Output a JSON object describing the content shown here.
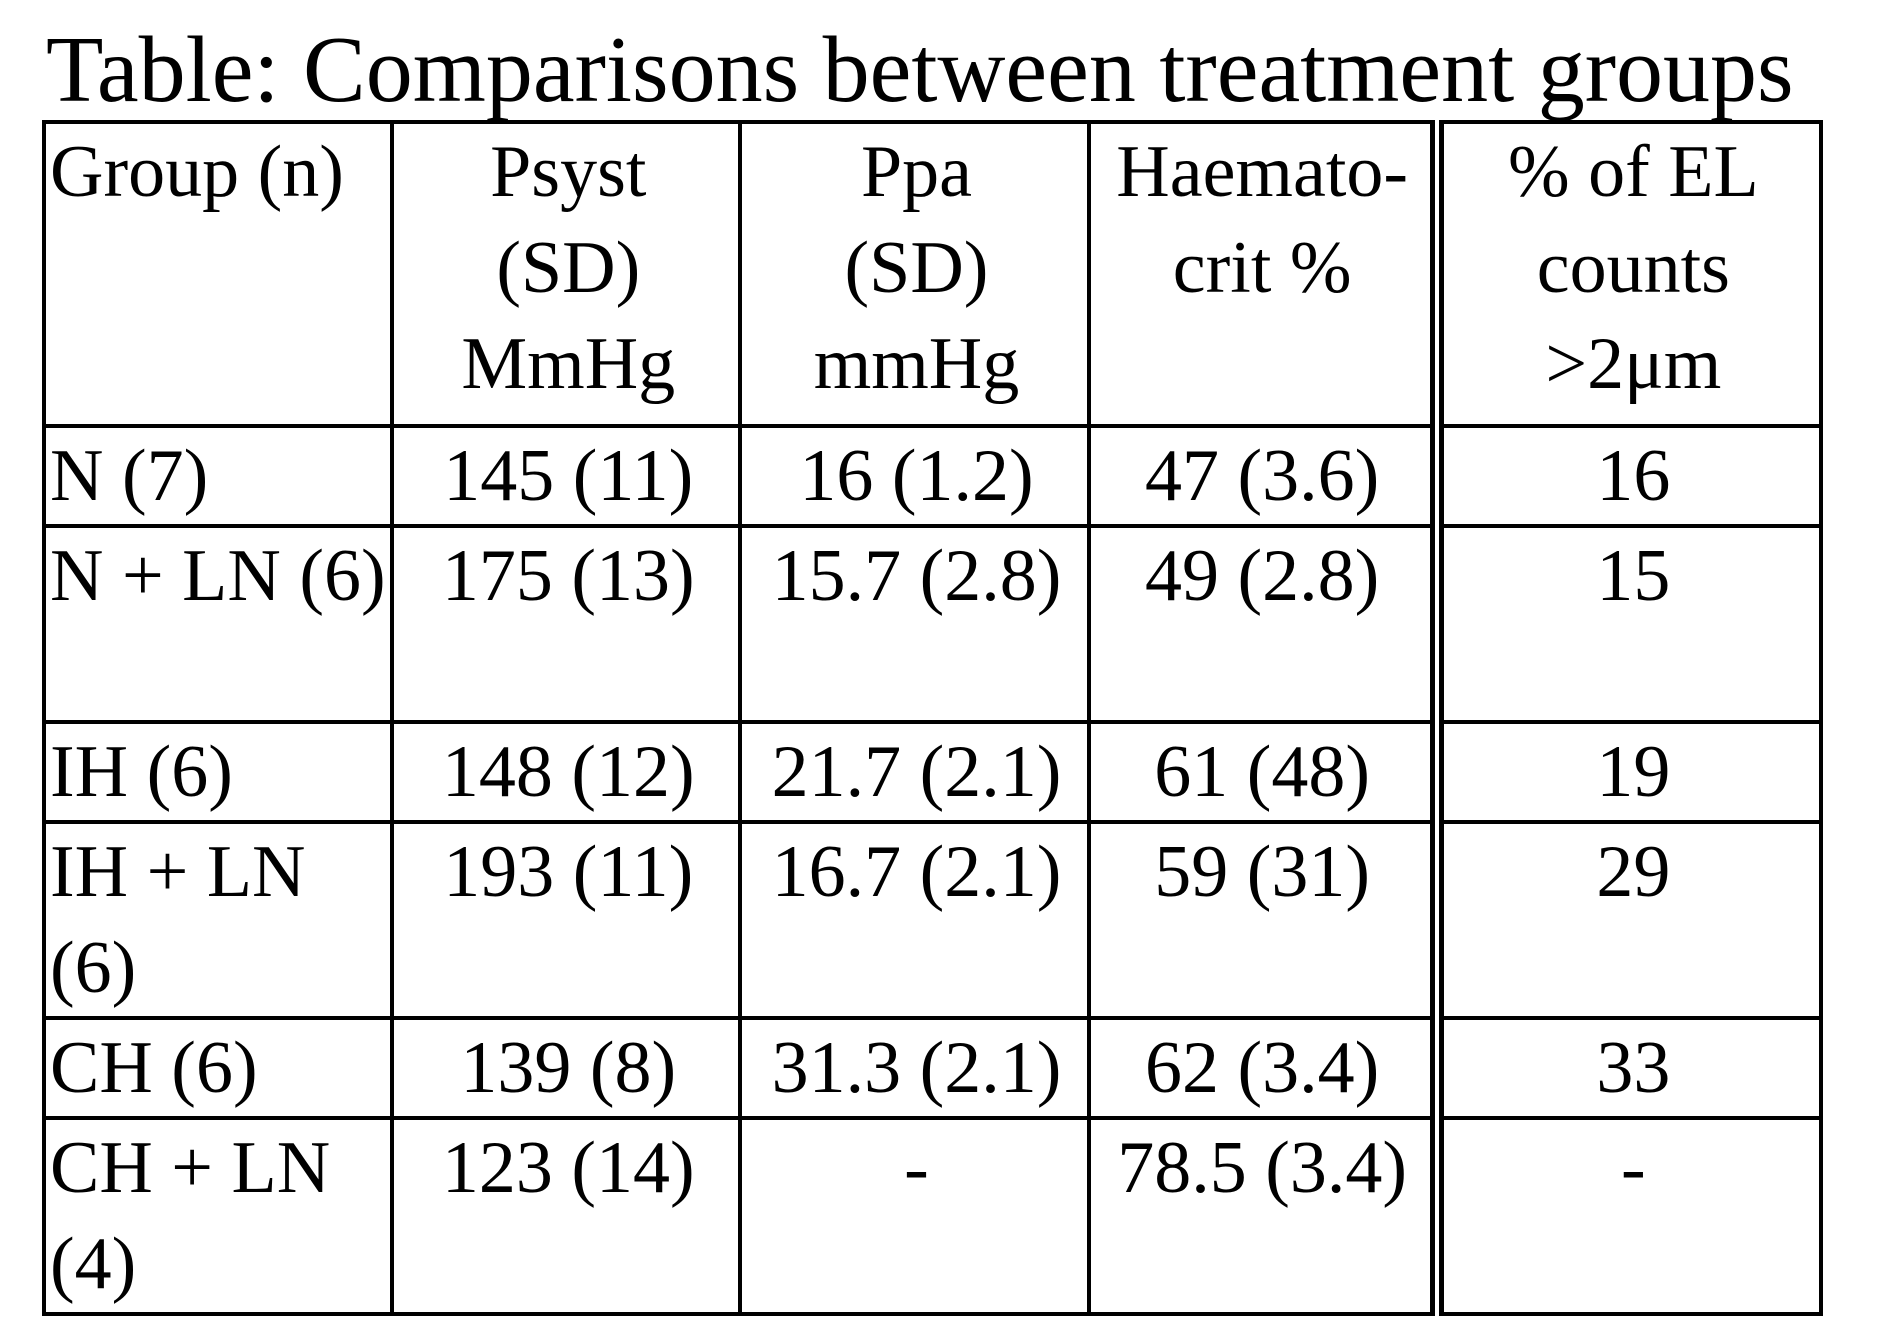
{
  "title": "Table: Comparisons between treatment groups",
  "table": {
    "headers": [
      [
        "Group (n)"
      ],
      [
        "Psyst",
        "(SD)",
        "MmHg"
      ],
      [
        "Ppa",
        "(SD)",
        "mmHg"
      ],
      [
        "Haemato-",
        "crit %"
      ],
      [
        "% of EL",
        "counts",
        ">2μm"
      ]
    ],
    "rows": [
      [
        "N (7)",
        "145 (11)",
        "16 (1.2)",
        "47 (3.6)",
        "16"
      ],
      [
        "N + LN (6)",
        "175 (13)",
        "15.7 (2.8)",
        "49 (2.8)",
        "15"
      ],
      [
        "IH (6)",
        "148 (12)",
        "21.7 (2.1)",
        "61 (48)",
        "19"
      ],
      [
        "IH + LN (6)",
        "193 (11)",
        "16.7 (2.1)",
        "59 (31)",
        "29"
      ],
      [
        "CH (6)",
        "139 (8)",
        "31.3 (2.1)",
        "62 (3.4)",
        "33"
      ],
      [
        "CH + LN (4)",
        "123 (14)",
        "-",
        "78.5 (3.4)",
        "-"
      ]
    ]
  }
}
